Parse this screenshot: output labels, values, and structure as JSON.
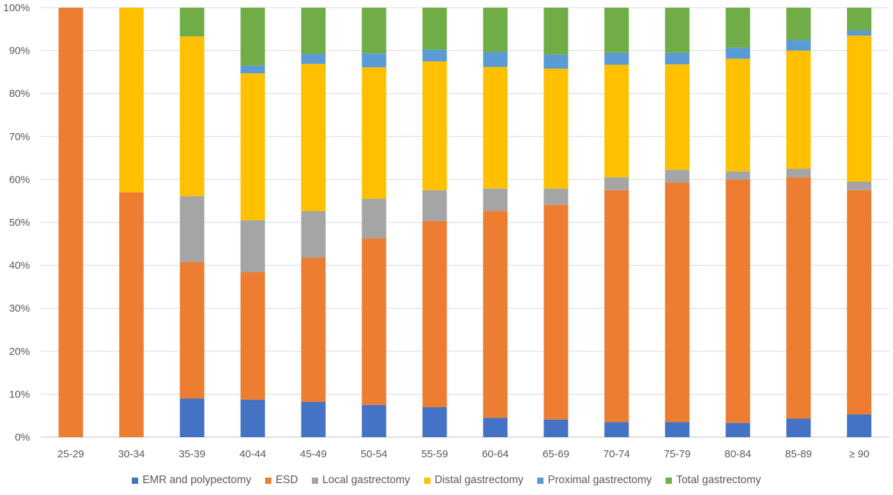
{
  "chart_data": {
    "type": "bar",
    "stacked": true,
    "normalized": true,
    "categories": [
      "25-29",
      "30-34",
      "35-39",
      "40-44",
      "45-49",
      "50-54",
      "55-59",
      "60-64",
      "65-69",
      "70-74",
      "75-79",
      "80-84",
      "85-89",
      "≥ 90"
    ],
    "series": [
      {
        "name": "EMR and polypectomy",
        "color": "#4472C4",
        "values": [
          0,
          0,
          9.0,
          8.7,
          8.2,
          7.5,
          7.0,
          4.5,
          4.1,
          3.5,
          3.5,
          3.3,
          4.3,
          5.3
        ]
      },
      {
        "name": "ESD",
        "color": "#ED7D31",
        "values": [
          100,
          57.0,
          31.8,
          29.7,
          33.6,
          38.8,
          43.3,
          48.2,
          50.0,
          54.0,
          55.8,
          56.6,
          56.2,
          52.2
        ]
      },
      {
        "name": "Local gastrectomy",
        "color": "#A5A5A5",
        "values": [
          0,
          0,
          15.3,
          12.1,
          10.8,
          9.2,
          7.2,
          5.2,
          3.8,
          3.0,
          3.0,
          2.0,
          2.0,
          2.0
        ]
      },
      {
        "name": "Distal gastrectomy",
        "color": "#FFC000",
        "values": [
          0,
          43.0,
          37.2,
          34.2,
          34.3,
          30.6,
          30.0,
          28.3,
          27.9,
          26.2,
          24.5,
          26.2,
          27.5,
          34.0
        ]
      },
      {
        "name": "Proximal gastrectomy",
        "color": "#5B9BD5",
        "values": [
          0,
          0,
          0,
          1.8,
          2.3,
          3.3,
          2.7,
          3.5,
          3.3,
          2.8,
          2.7,
          2.6,
          2.5,
          1.2
        ]
      },
      {
        "name": "Total gastrectomy",
        "color": "#70AD47",
        "values": [
          0,
          0,
          6.7,
          13.5,
          10.8,
          10.6,
          9.8,
          10.3,
          10.9,
          10.5,
          10.5,
          9.3,
          7.5,
          5.3
        ]
      }
    ],
    "ylim": [
      0,
      100
    ],
    "ytick_labels": [
      "0%",
      "10%",
      "20%",
      "30%",
      "40%",
      "50%",
      "60%",
      "70%",
      "80%",
      "90%",
      "100%"
    ],
    "grid": true,
    "legend_position": "bottom"
  }
}
